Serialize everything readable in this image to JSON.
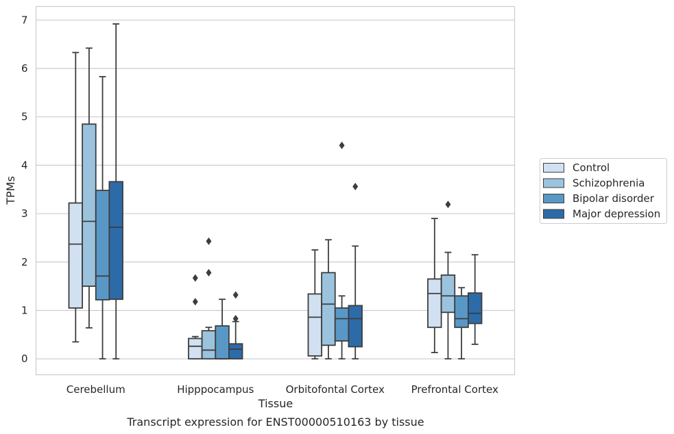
{
  "chart_data": {
    "type": "boxplot",
    "caption": "Transcript expression for ENST00000510163 by tissue",
    "xlabel": "Tissue",
    "ylabel": "TPMs",
    "ylim": [
      -0.33,
      7.28
    ],
    "yticks": [
      0,
      1,
      2,
      3,
      4,
      5,
      6,
      7
    ],
    "grid": true,
    "legend_position": "right",
    "categories": [
      "Cerebellum",
      "Hipppocampus",
      "Orbitofontal Cortex",
      "Prefrontal Cortex"
    ],
    "series": [
      {
        "name": "Control",
        "color": "#d1e1f1",
        "boxes": [
          {
            "whislo": 0.35,
            "q1": 1.05,
            "med": 2.37,
            "q3": 3.22,
            "whishi": 6.33,
            "fliers": []
          },
          {
            "whislo": 0.0,
            "q1": 0.0,
            "med": 0.26,
            "q3": 0.42,
            "whishi": 0.46,
            "fliers": [
              1.18,
              1.67
            ]
          },
          {
            "whislo": 0.0,
            "q1": 0.06,
            "med": 0.86,
            "q3": 1.34,
            "whishi": 2.25,
            "fliers": []
          },
          {
            "whislo": 0.13,
            "q1": 0.65,
            "med": 1.35,
            "q3": 1.65,
            "whishi": 2.9,
            "fliers": []
          }
        ]
      },
      {
        "name": "Schizophrenia",
        "color": "#9bc3de",
        "boxes": [
          {
            "whislo": 0.64,
            "q1": 1.5,
            "med": 2.84,
            "q3": 4.85,
            "whishi": 6.42,
            "fliers": []
          },
          {
            "whislo": 0.0,
            "q1": 0.0,
            "med": 0.18,
            "q3": 0.58,
            "whishi": 0.65,
            "fliers": [
              1.78,
              2.43
            ]
          },
          {
            "whislo": 0.0,
            "q1": 0.28,
            "med": 1.13,
            "q3": 1.78,
            "whishi": 2.46,
            "fliers": []
          },
          {
            "whislo": 0.0,
            "q1": 0.96,
            "med": 1.3,
            "q3": 1.73,
            "whishi": 2.2,
            "fliers": [
              3.19
            ]
          }
        ]
      },
      {
        "name": "Bipolar disorder",
        "color": "#5998c6",
        "boxes": [
          {
            "whislo": 0.0,
            "q1": 1.22,
            "med": 1.71,
            "q3": 3.48,
            "whishi": 5.83,
            "fliers": []
          },
          {
            "whislo": 0.0,
            "q1": 0.0,
            "med": 0.0,
            "q3": 0.68,
            "whishi": 1.23,
            "fliers": []
          },
          {
            "whislo": 0.0,
            "q1": 0.37,
            "med": 0.83,
            "q3": 1.05,
            "whishi": 1.3,
            "fliers": [
              4.41
            ]
          },
          {
            "whislo": 0.0,
            "q1": 0.65,
            "med": 0.83,
            "q3": 1.3,
            "whishi": 1.47,
            "fliers": []
          }
        ]
      },
      {
        "name": "Major depression",
        "color": "#2d6ba8",
        "boxes": [
          {
            "whislo": 0.0,
            "q1": 1.23,
            "med": 2.72,
            "q3": 3.66,
            "whishi": 6.92,
            "fliers": []
          },
          {
            "whislo": 0.0,
            "q1": 0.0,
            "med": 0.2,
            "q3": 0.31,
            "whishi": 0.77,
            "fliers": [
              0.83,
              1.32
            ]
          },
          {
            "whislo": 0.0,
            "q1": 0.25,
            "med": 0.83,
            "q3": 1.1,
            "whishi": 2.33,
            "fliers": [
              3.56
            ]
          },
          {
            "whislo": 0.3,
            "q1": 0.73,
            "med": 0.94,
            "q3": 1.36,
            "whishi": 2.15,
            "fliers": []
          }
        ]
      }
    ]
  }
}
